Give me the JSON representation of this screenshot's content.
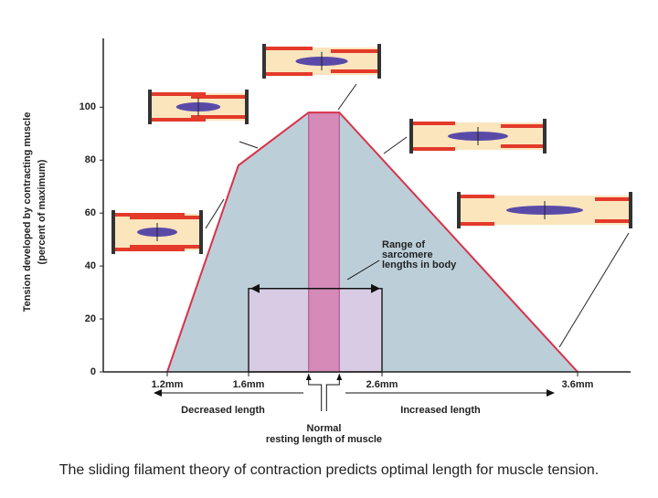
{
  "chart_data": {
    "type": "area",
    "y_label_lines": [
      "Tension developed by contracting muscle",
      "(percent of maximum)"
    ],
    "x": [
      1.2,
      1.55,
      2.05,
      2.28,
      3.6
    ],
    "values": [
      0,
      78,
      98,
      98,
      0
    ],
    "color": "#d8324a",
    "fill_color": "#bccfd9",
    "ylim": [
      0,
      126
    ],
    "yticks": [
      0,
      20,
      40,
      60,
      80,
      100
    ],
    "xticks": [
      {
        "value": 1.2,
        "label": "1.2mm"
      },
      {
        "value": 1.6,
        "label": "1.6mm"
      },
      {
        "value": 2.6,
        "label": "2.6mm"
      },
      {
        "value": 3.6,
        "label": "3.6mm"
      }
    ],
    "optimal_range": {
      "x": [
        2.05,
        2.28
      ],
      "color": "#d58ab8"
    },
    "body_range": {
      "label_lines": [
        "Range of",
        "sarcomere",
        "lengths in body"
      ],
      "x": [
        1.6,
        2.6
      ],
      "value": 31.5,
      "color": "#d8cce4"
    },
    "decreased_label": "Decreased length",
    "increased_label": "Increased length",
    "normal_label_lines": [
      "Normal",
      "resting length of muscle"
    ],
    "caption": "The sliding filament theory of contraction predicts optimal length for muscle tension."
  }
}
